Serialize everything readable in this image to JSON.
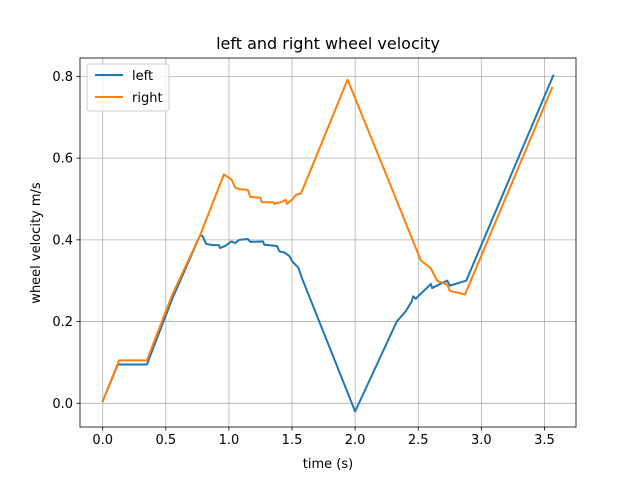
{
  "chart_data": {
    "type": "line",
    "title": "left and right wheel velocity",
    "xlabel": "time (s)",
    "ylabel": "wheel velocity m/s",
    "xlim": [
      -0.18,
      3.75
    ],
    "ylim": [
      -0.058,
      0.845
    ],
    "xticks": [
      0.0,
      0.5,
      1.0,
      1.5,
      2.0,
      2.5,
      3.0,
      3.5
    ],
    "xtick_labels": [
      "0.0",
      "0.5",
      "1.0",
      "1.5",
      "2.0",
      "2.5",
      "3.0",
      "3.5"
    ],
    "yticks": [
      0.0,
      0.2,
      0.4,
      0.6,
      0.8
    ],
    "ytick_labels": [
      "0.0",
      "0.2",
      "0.4",
      "0.6",
      "0.8"
    ],
    "grid": true,
    "legend_position": "top-left",
    "series": [
      {
        "name": "left",
        "color": "#1f77b4",
        "points": [
          [
            0.0,
            0.005
          ],
          [
            0.12,
            0.095
          ],
          [
            0.35,
            0.095
          ],
          [
            0.55,
            0.255
          ],
          [
            0.77,
            0.41
          ],
          [
            0.79,
            0.41
          ],
          [
            0.82,
            0.39
          ],
          [
            0.87,
            0.387
          ],
          [
            0.92,
            0.387
          ],
          [
            0.93,
            0.38
          ],
          [
            0.97,
            0.385
          ],
          [
            1.02,
            0.396
          ],
          [
            1.05,
            0.392
          ],
          [
            1.08,
            0.4
          ],
          [
            1.15,
            0.402
          ],
          [
            1.17,
            0.395
          ],
          [
            1.27,
            0.396
          ],
          [
            1.28,
            0.388
          ],
          [
            1.38,
            0.385
          ],
          [
            1.4,
            0.372
          ],
          [
            1.44,
            0.369
          ],
          [
            1.48,
            0.36
          ],
          [
            1.5,
            0.348
          ],
          [
            1.53,
            0.338
          ],
          [
            1.55,
            0.332
          ],
          [
            1.58,
            0.305
          ],
          [
            2.0,
            -0.02
          ],
          [
            2.33,
            0.2
          ],
          [
            2.4,
            0.225
          ],
          [
            2.45,
            0.25
          ],
          [
            2.46,
            0.262
          ],
          [
            2.48,
            0.256
          ],
          [
            2.6,
            0.292
          ],
          [
            2.61,
            0.282
          ],
          [
            2.68,
            0.293
          ],
          [
            2.73,
            0.3
          ],
          [
            2.75,
            0.288
          ],
          [
            2.88,
            0.3
          ],
          [
            3.57,
            0.802
          ]
        ]
      },
      {
        "name": "right",
        "color": "#ff7f0e",
        "points": [
          [
            0.0,
            0.005
          ],
          [
            0.13,
            0.105
          ],
          [
            0.35,
            0.105
          ],
          [
            0.55,
            0.265
          ],
          [
            0.77,
            0.41
          ],
          [
            0.96,
            0.56
          ],
          [
            1.02,
            0.548
          ],
          [
            1.05,
            0.528
          ],
          [
            1.08,
            0.524
          ],
          [
            1.15,
            0.522
          ],
          [
            1.17,
            0.505
          ],
          [
            1.25,
            0.503
          ],
          [
            1.26,
            0.492
          ],
          [
            1.35,
            0.492
          ],
          [
            1.36,
            0.488
          ],
          [
            1.42,
            0.493
          ],
          [
            1.45,
            0.498
          ],
          [
            1.46,
            0.488
          ],
          [
            1.5,
            0.498
          ],
          [
            1.53,
            0.51
          ],
          [
            1.57,
            0.513
          ],
          [
            1.6,
            0.535
          ],
          [
            1.94,
            0.792
          ],
          [
            2.28,
            0.534
          ],
          [
            2.52,
            0.35
          ],
          [
            2.6,
            0.33
          ],
          [
            2.65,
            0.3
          ],
          [
            2.7,
            0.294
          ],
          [
            2.73,
            0.29
          ],
          [
            2.75,
            0.275
          ],
          [
            2.85,
            0.268
          ],
          [
            2.87,
            0.266
          ],
          [
            3.56,
            0.772
          ]
        ]
      }
    ]
  }
}
